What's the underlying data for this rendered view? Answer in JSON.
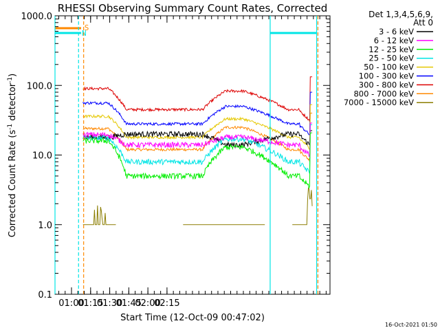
{
  "chart_data": {
    "type": "line",
    "title": "RHESSI Observing Summary Count Rates, Corrected",
    "xlabel": "Start Time (12-Oct-09 00:47:02)",
    "ylabel": "Corrected Count Rate (s⁻¹ detector⁻¹)",
    "ylabel_main": "Corrected Count Rate (s",
    "ylabel_mid": " detector",
    "ylabel_end": ")",
    "ylabel_sup": "-1",
    "yscale": "log",
    "ylim": [
      0.1,
      1000.0
    ],
    "xlim_minutes": [
      0,
      216
    ],
    "x_ticks": [
      "01:00",
      "01:15",
      "01:30",
      "01:45",
      "02:00",
      "02:15"
    ],
    "y_ticks": [
      "0.1",
      "1.0",
      "10.0",
      "100.0",
      "1000.0"
    ],
    "legend": {
      "header1": "Det 1,3,4,5,6,9,",
      "header2": "Att 0",
      "position": "right"
    },
    "series": [
      {
        "name": "3 - 6 keV",
        "color": "#000000",
        "flat": 20,
        "peak": 14
      },
      {
        "name": "6 - 12 keV",
        "color": "#ff00ff",
        "flat": 14,
        "peak": 18
      },
      {
        "name": "12 - 25 keV",
        "color": "#00ee00",
        "flat": 5,
        "peak": 13
      },
      {
        "name": "25 - 50 keV",
        "color": "#00e5e5",
        "flat": 8,
        "peak": 17
      },
      {
        "name": "50 - 100 keV",
        "color": "#e5c800",
        "flat": 18,
        "peak": 33
      },
      {
        "name": "100 - 300 keV",
        "color": "#0000ff",
        "flat": 28,
        "peak": 50
      },
      {
        "name": "300 - 800 keV",
        "color": "#dd0000",
        "flat": 45,
        "peak": 83
      },
      {
        "name": "800 - 7000 keV",
        "color": "#ff8800",
        "flat": 12,
        "peak": 25
      },
      {
        "name": "7000 - 15000 keV",
        "color": "#8b7d00",
        "flat": 1.0,
        "peak": 1.0
      }
    ],
    "flags": [
      {
        "label": "S",
        "color": "#ff8800"
      },
      {
        "label": "N",
        "color": "#00e5e5"
      }
    ],
    "timestamp": "16-Oct-2021 01:50"
  }
}
